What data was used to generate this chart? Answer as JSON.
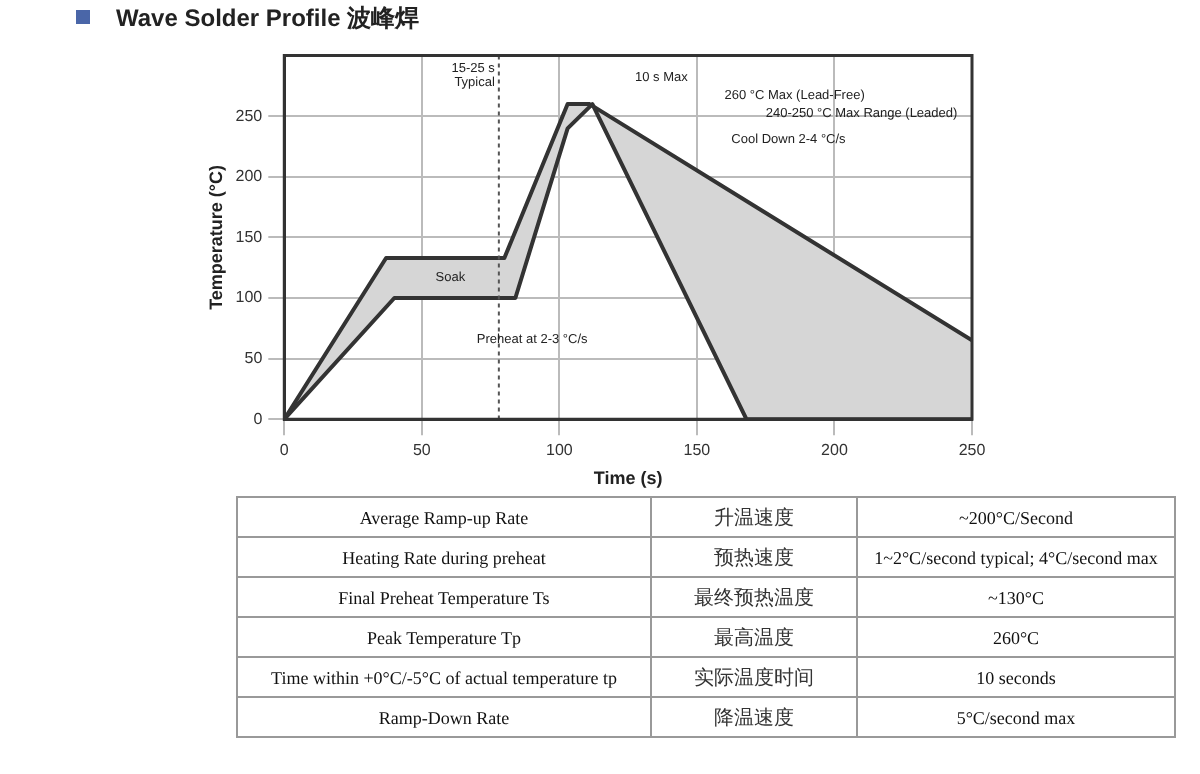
{
  "chart_data": {
    "type": "line",
    "title": "Wave Solder Profile 波峰焊",
    "xlabel": "Time (s)",
    "ylabel": "Temperature (°C)",
    "xlim": [
      0,
      250
    ],
    "xticks": [
      0,
      50,
      100,
      150,
      200,
      250
    ],
    "ylim": [
      0,
      300
    ],
    "yticks": [
      0,
      50,
      100,
      150,
      200,
      250
    ],
    "grid": true,
    "legend": false,
    "marker": "none",
    "line_style": "solid",
    "series": [
      {
        "type": "line",
        "color": "#333333",
        "x": [
          0,
          37,
          80,
          103,
          111,
          250
        ],
        "values": [
          0,
          133,
          133,
          260,
          260,
          65
        ]
      },
      {
        "type": "line",
        "color": "#333333",
        "x": [
          0,
          40,
          84,
          103,
          112,
          168,
          250
        ],
        "values": [
          0,
          100,
          100,
          240,
          260,
          0,
          0
        ]
      }
    ],
    "ref_lines": [
      {
        "axis": "x",
        "value": 78,
        "label": "15-25 s Typical",
        "line_style": "dotted",
        "color": "#555555"
      }
    ],
    "annotations": [
      "Soak",
      "Preheat at 2-3 °C/s",
      "10 s Max",
      "260 °C Max (Lead-Free)",
      "240-250 °C Max Range (Leaded)",
      "Cool Down 2-4 °C/s",
      "Average Ramp-up Rate",
      "升温速度",
      "~200°C/Second",
      "Heating Rate during preheat",
      "预热速度",
      "1~2°C/second typical; 4°C/second max",
      "Final Preheat Temperature Ts",
      "最终预热温度",
      "~130°C",
      "Peak Temperature Tp",
      "最高温度",
      "260°C",
      "Time within +0°C/-5°C of actual temperature tp",
      "实际温度时间",
      "10 seconds",
      "Ramp-Down Rate",
      "降温速度",
      "5°C/second max"
    ]
  }
}
